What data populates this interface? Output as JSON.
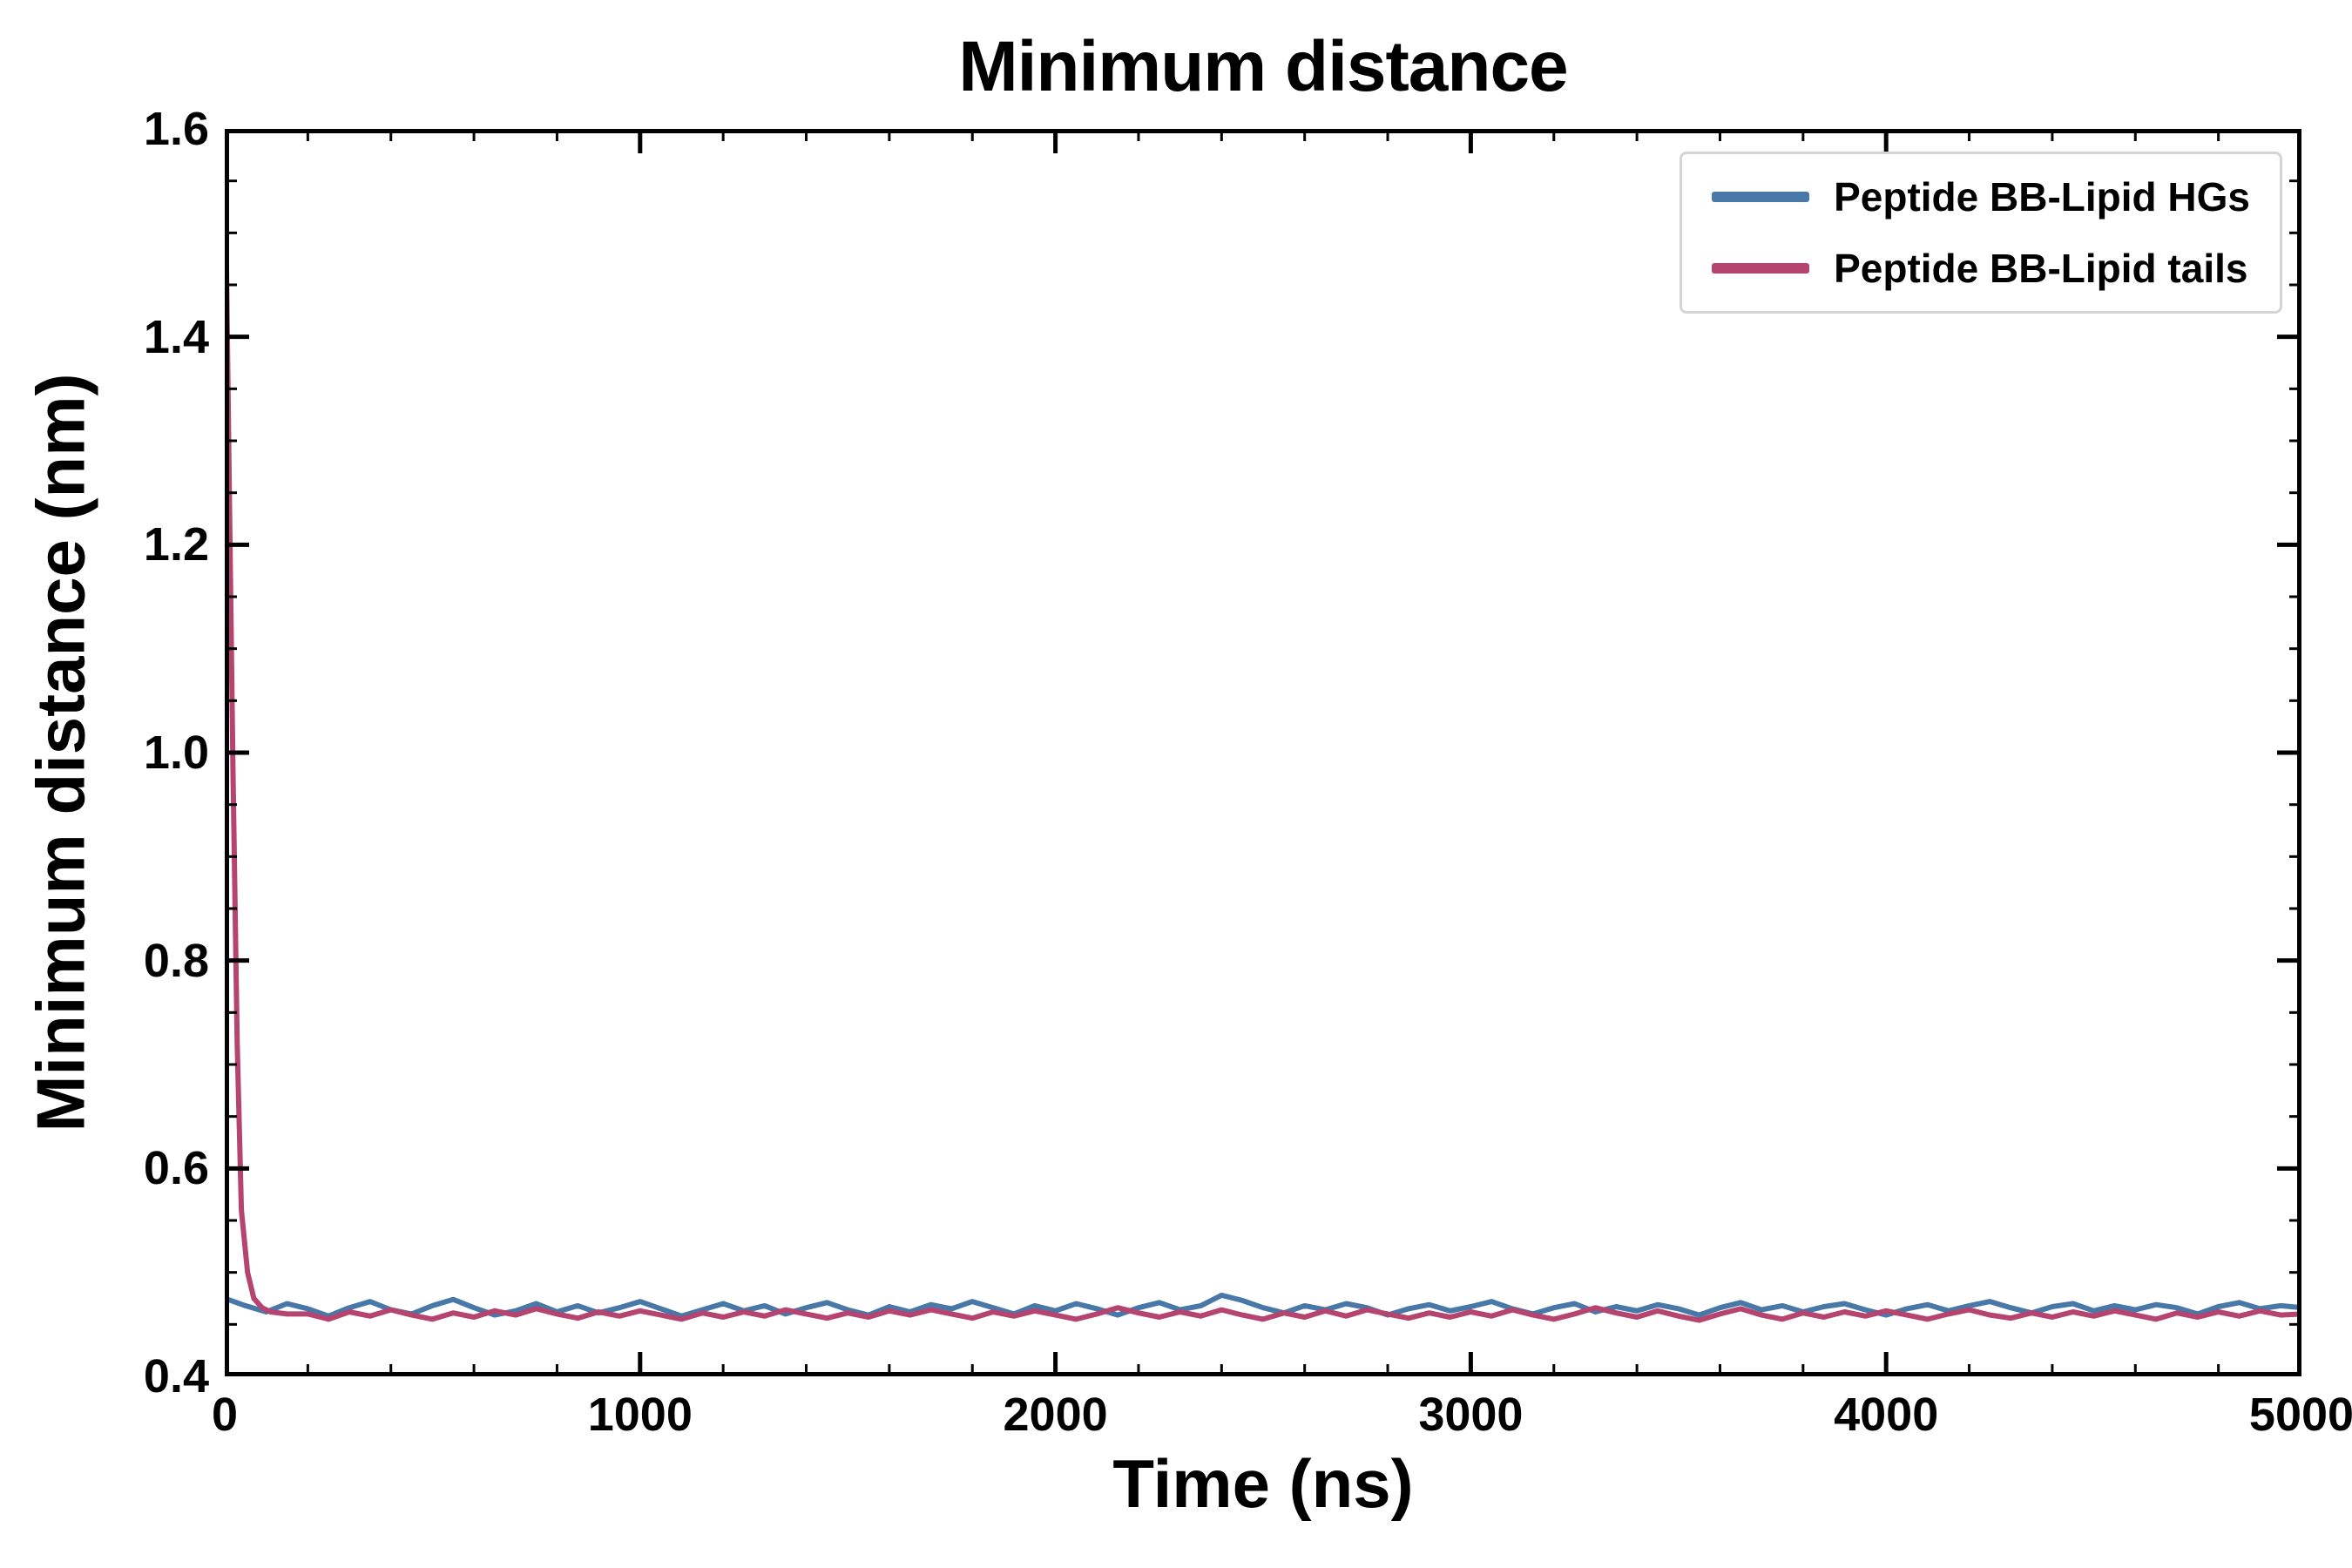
{
  "chart_data": {
    "type": "line",
    "title": "Minimum distance",
    "xlabel": "Time (ns)",
    "ylabel": "Minimum distance (nm)",
    "xlim": [
      0,
      5000
    ],
    "ylim": [
      0.4,
      1.6
    ],
    "x_major_ticks": [
      0,
      1000,
      2000,
      3000,
      4000,
      5000
    ],
    "x_minor_step": 200,
    "y_major_ticks": [
      0.4,
      0.6,
      0.8,
      1.0,
      1.2,
      1.4,
      1.6
    ],
    "y_minor_step": 0.05,
    "grid": false,
    "legend_position": "upper right",
    "frame_color": "#000000",
    "series": [
      {
        "name": "Peptide BB-Lipid HGs",
        "color": "#4878a8",
        "x": [
          0,
          50,
          100,
          150,
          200,
          250,
          300,
          350,
          400,
          450,
          500,
          550,
          600,
          650,
          700,
          750,
          800,
          850,
          900,
          950,
          1000,
          1050,
          1100,
          1150,
          1200,
          1250,
          1300,
          1350,
          1400,
          1450,
          1500,
          1550,
          1600,
          1650,
          1700,
          1750,
          1800,
          1850,
          1900,
          1950,
          2000,
          2050,
          2100,
          2150,
          2200,
          2250,
          2300,
          2350,
          2400,
          2450,
          2500,
          2550,
          2600,
          2650,
          2700,
          2750,
          2800,
          2850,
          2900,
          2950,
          3000,
          3050,
          3100,
          3150,
          3200,
          3250,
          3300,
          3350,
          3400,
          3450,
          3500,
          3550,
          3600,
          3650,
          3700,
          3750,
          3800,
          3850,
          3900,
          3950,
          4000,
          4050,
          4100,
          4150,
          4200,
          4250,
          4300,
          4350,
          4400,
          4450,
          4500,
          4550,
          4600,
          4650,
          4700,
          4750,
          4800,
          4850,
          4900,
          4950,
          5000
        ],
        "y": [
          0.475,
          0.468,
          0.462,
          0.47,
          0.465,
          0.458,
          0.466,
          0.472,
          0.464,
          0.46,
          0.468,
          0.474,
          0.466,
          0.459,
          0.463,
          0.47,
          0.462,
          0.468,
          0.461,
          0.466,
          0.472,
          0.465,
          0.458,
          0.464,
          0.47,
          0.463,
          0.468,
          0.46,
          0.466,
          0.471,
          0.464,
          0.459,
          0.467,
          0.462,
          0.469,
          0.465,
          0.472,
          0.466,
          0.46,
          0.468,
          0.463,
          0.47,
          0.465,
          0.459,
          0.466,
          0.471,
          0.464,
          0.468,
          0.478,
          0.473,
          0.466,
          0.461,
          0.468,
          0.464,
          0.47,
          0.466,
          0.459,
          0.465,
          0.469,
          0.463,
          0.467,
          0.472,
          0.465,
          0.46,
          0.466,
          0.47,
          0.462,
          0.467,
          0.463,
          0.469,
          0.465,
          0.459,
          0.466,
          0.471,
          0.464,
          0.468,
          0.462,
          0.467,
          0.47,
          0.464,
          0.459,
          0.465,
          0.469,
          0.463,
          0.468,
          0.472,
          0.466,
          0.461,
          0.467,
          0.47,
          0.463,
          0.468,
          0.464,
          0.469,
          0.466,
          0.46,
          0.467,
          0.471,
          0.465,
          0.468,
          0.466
        ]
      },
      {
        "name": "Peptide BB-Lipid tails",
        "color": "#b5446e",
        "x": [
          0,
          10,
          20,
          30,
          40,
          55,
          70,
          90,
          110,
          150,
          200,
          250,
          300,
          350,
          400,
          450,
          500,
          550,
          600,
          650,
          700,
          750,
          800,
          850,
          900,
          950,
          1000,
          1050,
          1100,
          1150,
          1200,
          1250,
          1300,
          1350,
          1400,
          1450,
          1500,
          1550,
          1600,
          1650,
          1700,
          1750,
          1800,
          1850,
          1900,
          1950,
          2000,
          2050,
          2100,
          2150,
          2200,
          2250,
          2300,
          2350,
          2400,
          2450,
          2500,
          2550,
          2600,
          2650,
          2700,
          2750,
          2800,
          2850,
          2900,
          2950,
          3000,
          3050,
          3100,
          3150,
          3200,
          3250,
          3300,
          3350,
          3400,
          3450,
          3500,
          3550,
          3600,
          3650,
          3700,
          3750,
          3800,
          3850,
          3900,
          3950,
          4000,
          4050,
          4100,
          4150,
          4200,
          4250,
          4300,
          4350,
          4400,
          4450,
          4500,
          4550,
          4600,
          4650,
          4700,
          4750,
          4800,
          4850,
          4900,
          4950,
          5000
        ],
        "y": [
          1.6,
          1.28,
          0.98,
          0.72,
          0.56,
          0.5,
          0.475,
          0.466,
          0.462,
          0.46,
          0.46,
          0.455,
          0.462,
          0.458,
          0.464,
          0.459,
          0.455,
          0.461,
          0.457,
          0.463,
          0.459,
          0.465,
          0.46,
          0.456,
          0.462,
          0.458,
          0.463,
          0.459,
          0.455,
          0.461,
          0.457,
          0.462,
          0.458,
          0.464,
          0.46,
          0.456,
          0.461,
          0.457,
          0.463,
          0.459,
          0.464,
          0.46,
          0.456,
          0.462,
          0.458,
          0.463,
          0.459,
          0.455,
          0.46,
          0.466,
          0.461,
          0.457,
          0.462,
          0.458,
          0.464,
          0.459,
          0.455,
          0.461,
          0.457,
          0.463,
          0.458,
          0.464,
          0.46,
          0.456,
          0.461,
          0.457,
          0.462,
          0.458,
          0.464,
          0.459,
          0.455,
          0.46,
          0.466,
          0.461,
          0.457,
          0.463,
          0.458,
          0.454,
          0.46,
          0.465,
          0.459,
          0.455,
          0.461,
          0.457,
          0.462,
          0.458,
          0.463,
          0.459,
          0.455,
          0.46,
          0.464,
          0.459,
          0.456,
          0.461,
          0.457,
          0.462,
          0.458,
          0.463,
          0.459,
          0.455,
          0.461,
          0.457,
          0.462,
          0.458,
          0.463,
          0.459,
          0.46
        ]
      }
    ]
  }
}
